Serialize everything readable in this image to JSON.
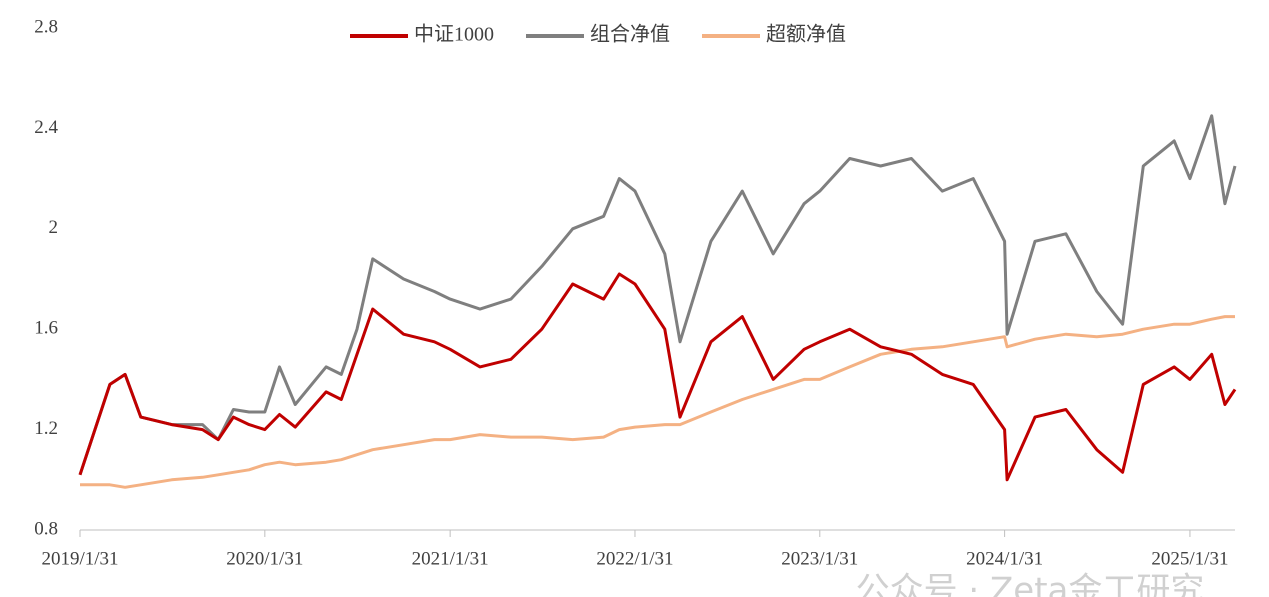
{
  "chart_data": {
    "type": "line",
    "x": [
      "2019/1/31",
      "2019/3/31",
      "2019/4/30",
      "2019/5/31",
      "2019/7/31",
      "2019/9/30",
      "2019/10/31",
      "2019/11/30",
      "2019/12/31",
      "2020/1/31",
      "2020/2/29",
      "2020/3/31",
      "2020/5/31",
      "2020/6/30",
      "2020/7/31",
      "2020/8/31",
      "2020/10/31",
      "2020/12/31",
      "2021/1/31",
      "2021/3/31",
      "2021/5/31",
      "2021/7/31",
      "2021/9/30",
      "2021/11/30",
      "2021/12/31",
      "2022/1/31",
      "2022/3/31",
      "2022/4/30",
      "2022/6/30",
      "2022/8/31",
      "2022/10/31",
      "2022/12/31",
      "2023/1/31",
      "2023/3/31",
      "2023/5/31",
      "2023/7/31",
      "2023/9/30",
      "2023/11/30",
      "2024/1/31",
      "2024/2/5",
      "2024/3/31",
      "2024/5/31",
      "2024/7/31",
      "2024/9/20",
      "2024/10/31",
      "2024/12/31",
      "2025/1/31",
      "2025/3/15",
      "2025/4/10",
      "2025/4/30"
    ],
    "series": [
      {
        "name": "中证1000",
        "color": "#c00000",
        "values": [
          1.02,
          1.38,
          1.42,
          1.25,
          1.22,
          1.2,
          1.16,
          1.25,
          1.22,
          1.2,
          1.26,
          1.21,
          1.35,
          1.32,
          1.5,
          1.68,
          1.58,
          1.55,
          1.52,
          1.45,
          1.48,
          1.6,
          1.78,
          1.72,
          1.82,
          1.78,
          1.6,
          1.25,
          1.55,
          1.65,
          1.4,
          1.52,
          1.55,
          1.6,
          1.53,
          1.5,
          1.42,
          1.38,
          1.2,
          1.0,
          1.25,
          1.28,
          1.12,
          1.03,
          1.38,
          1.45,
          1.4,
          1.5,
          1.3,
          1.36
        ]
      },
      {
        "name": "组合净值",
        "color": "#7f7f7f",
        "values": [
          1.02,
          1.38,
          1.42,
          1.25,
          1.22,
          1.22,
          1.16,
          1.28,
          1.27,
          1.27,
          1.45,
          1.3,
          1.45,
          1.42,
          1.6,
          1.88,
          1.8,
          1.75,
          1.72,
          1.68,
          1.72,
          1.85,
          2.0,
          2.05,
          2.2,
          2.15,
          1.9,
          1.55,
          1.95,
          2.15,
          1.9,
          2.1,
          2.15,
          2.28,
          2.25,
          2.28,
          2.15,
          2.2,
          1.95,
          1.58,
          1.95,
          1.98,
          1.75,
          1.62,
          2.25,
          2.35,
          2.2,
          2.45,
          2.1,
          2.25
        ]
      },
      {
        "name": "超额净值",
        "color": "#f4b183",
        "values": [
          0.98,
          0.98,
          0.97,
          0.98,
          1.0,
          1.01,
          1.02,
          1.03,
          1.04,
          1.06,
          1.07,
          1.06,
          1.07,
          1.08,
          1.1,
          1.12,
          1.14,
          1.16,
          1.16,
          1.18,
          1.17,
          1.17,
          1.16,
          1.17,
          1.2,
          1.21,
          1.22,
          1.22,
          1.27,
          1.32,
          1.36,
          1.4,
          1.4,
          1.45,
          1.5,
          1.52,
          1.53,
          1.55,
          1.57,
          1.53,
          1.56,
          1.58,
          1.57,
          1.58,
          1.6,
          1.62,
          1.62,
          1.64,
          1.65,
          1.65
        ]
      }
    ],
    "xlim": [
      "2019/1/31",
      "2025/4/30"
    ],
    "xticks": [
      "2019/1/31",
      "2020/1/31",
      "2021/1/31",
      "2022/1/31",
      "2023/1/31",
      "2024/1/31",
      "2025/1/31"
    ],
    "ylim": [
      0.8,
      2.8
    ],
    "yticks": [
      0.8,
      1.2,
      1.6,
      2,
      2.4,
      2.8
    ],
    "grid": false,
    "legend": "top",
    "watermark": "公众号 · Zeta金工研究"
  }
}
